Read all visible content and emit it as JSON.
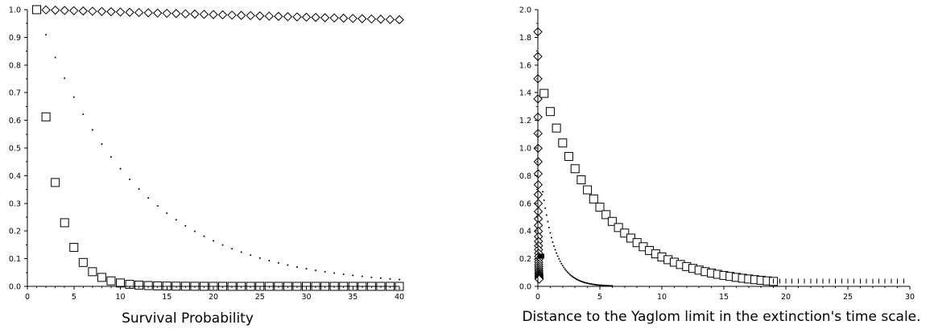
{
  "chart_data": [
    {
      "type": "scatter",
      "title": "",
      "xlabel": "Survival Probability",
      "ylabel": "",
      "xlim": [
        0,
        40
      ],
      "ylim": [
        0,
        1
      ],
      "xticks": [
        0,
        5,
        10,
        15,
        20,
        25,
        30,
        35,
        40
      ],
      "yticks": [
        0,
        0.1,
        0.2,
        0.3,
        0.4,
        0.5,
        0.6,
        0.7,
        0.8,
        0.9,
        1.0
      ],
      "xtick_labels": [
        "0",
        "5",
        "10",
        "15",
        "20",
        "25",
        "30",
        "35",
        "40"
      ],
      "ytick_labels": [
        "0.0",
        "0.1",
        "0.2",
        "0.3",
        "0.4",
        "0.5",
        "0.6",
        "0.7",
        "0.8",
        "0.9",
        "1.0"
      ],
      "grid": false,
      "series": [
        {
          "marker": "diamond",
          "decay": 0.00095,
          "x_from": 1,
          "x_to": 40,
          "x_step": 1
        },
        {
          "marker": "dot",
          "decay": 0.095,
          "x_from": 1,
          "x_to": 40,
          "x_step": 1
        },
        {
          "marker": "square",
          "decay": 0.49,
          "x_from": 1,
          "x_to": 40,
          "x_step": 1
        }
      ]
    },
    {
      "type": "scatter",
      "title": "",
      "xlabel": "Distance to the Yaglom limit in the extinction's time scale.",
      "ylabel": "",
      "xlim": [
        0,
        30
      ],
      "ylim": [
        0,
        2
      ],
      "xticks": [
        0,
        5,
        10,
        15,
        20,
        25,
        30
      ],
      "yticks": [
        0,
        0.2,
        0.4,
        0.6,
        0.8,
        1.0,
        1.2,
        1.4,
        1.6,
        1.8,
        2.0
      ],
      "xtick_labels": [
        "0",
        "5",
        "10",
        "15",
        "20",
        "25",
        "30"
      ],
      "ytick_labels": [
        "0.0",
        "0.2",
        "0.4",
        "0.6",
        "0.8",
        "1.0",
        "1.2",
        "1.4",
        "1.6",
        "1.8",
        "2.0"
      ],
      "grid": false,
      "series": [
        {
          "marker": "square",
          "amplitude": 1.54,
          "decay": 0.198,
          "x_from": 0.5,
          "x_to": 19.0,
          "x_step": 0.5
        },
        {
          "marker": "tick",
          "amplitude": 0.02,
          "decay": 0.0,
          "x_from": 19.0,
          "x_to": 29.6,
          "x_step": 0.5
        },
        {
          "marker": "dot",
          "amplitude": 1.0,
          "decay": 0.95,
          "x_from": 0.4,
          "x_to": 6.0,
          "x_step": 0.1
        },
        {
          "marker": "diamond",
          "amplitude": 1.84,
          "decay": 34.0,
          "x_from": 0,
          "x_to": 0.105,
          "x_step": 0.003
        },
        {
          "marker": "tick",
          "amplitude": 0.2,
          "decay": 0.0,
          "x_from": 0,
          "x_to": 0.5,
          "x_step": 0.01
        }
      ]
    }
  ]
}
